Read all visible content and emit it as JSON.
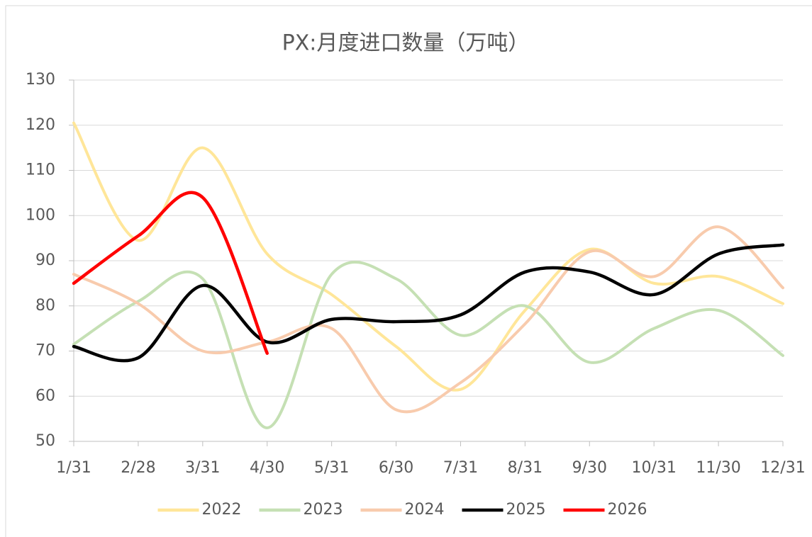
{
  "chart_data": {
    "type": "line",
    "title": "PX:月度进口数量（万吨）",
    "categories": [
      "1/31",
      "2/28",
      "3/31",
      "4/30",
      "5/31",
      "6/30",
      "7/31",
      "8/31",
      "9/30",
      "10/31",
      "11/30",
      "12/31"
    ],
    "series": [
      {
        "name": "2022",
        "color": "#ffe699",
        "values": [
          120.5,
          94.5,
          115,
          91.5,
          82.5,
          71,
          61.5,
          79,
          92.5,
          85,
          86.5,
          80.5
        ]
      },
      {
        "name": "2023",
        "color": "#c5e0b4",
        "values": [
          71.5,
          81,
          86,
          53,
          87,
          86,
          73.5,
          80,
          67.5,
          75,
          79,
          69
        ]
      },
      {
        "name": "2024",
        "color": "#f8cbad",
        "values": [
          87,
          80.5,
          70,
          72,
          75,
          57,
          63,
          76,
          92,
          86.5,
          97.5,
          84
        ]
      },
      {
        "name": "2025",
        "color": "#000000",
        "values": [
          71,
          68.5,
          84.5,
          72,
          77,
          76.5,
          78,
          87.5,
          87.5,
          82.5,
          91.5,
          93.5
        ]
      },
      {
        "name": "2026",
        "color": "#ff0000",
        "values": [
          85,
          95.5,
          104,
          69.5,
          null,
          null,
          null,
          null,
          null,
          null,
          null,
          null
        ]
      }
    ],
    "ylim": [
      50,
      130
    ],
    "yticks": [
      50,
      60,
      70,
      80,
      90,
      100,
      110,
      120,
      130
    ],
    "grid": true,
    "legend": "bottom"
  }
}
